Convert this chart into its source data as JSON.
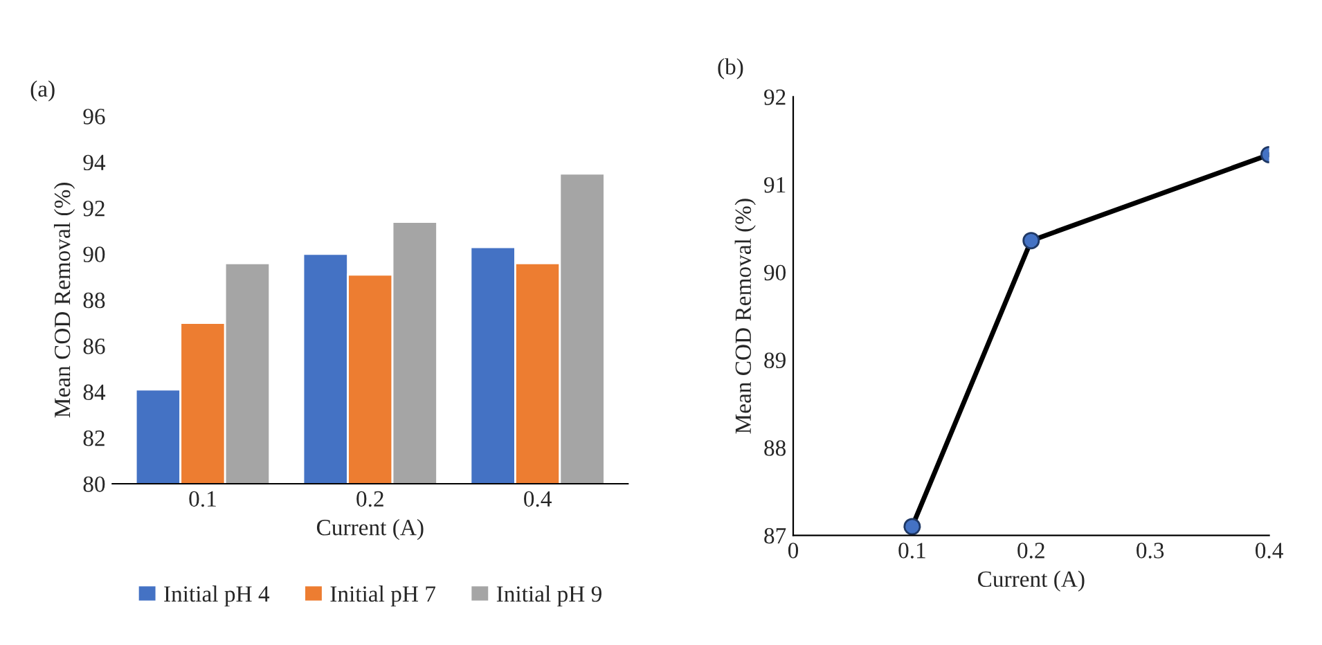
{
  "chart_data": [
    {
      "type": "bar",
      "title": "(a)",
      "xlabel": "Current (A)",
      "ylabel": "Mean COD Removal (%)",
      "categories": [
        "0.1",
        "0.2",
        "0.4"
      ],
      "series": [
        {
          "name": "Initial pH 4",
          "color": "#4472c4",
          "values": [
            84.1,
            90.0,
            90.3
          ]
        },
        {
          "name": "Initial pH 7",
          "color": "#ed7d31",
          "values": [
            87.0,
            89.1,
            89.6
          ]
        },
        {
          "name": "Initial pH 9",
          "color": "#a5a5a5",
          "values": [
            89.6,
            91.4,
            93.5
          ]
        }
      ],
      "ylim": [
        80,
        96
      ],
      "yticks": [
        80,
        82,
        84,
        86,
        88,
        90,
        92,
        94,
        96
      ],
      "grid": false,
      "legend": "bottom"
    },
    {
      "type": "line",
      "title": "(b)",
      "xlabel": "Current (A)",
      "ylabel": "Mean COD Removal (%)",
      "x": [
        0.1,
        0.2,
        0.4
      ],
      "series": [
        {
          "color": "#000000",
          "values": [
            87.1,
            90.36,
            91.34
          ]
        }
      ],
      "marker": "circle",
      "line_style": "solid",
      "xlim": [
        0,
        0.4
      ],
      "xticks": [
        0,
        0.1,
        0.2,
        0.3,
        0.4
      ],
      "ylim": [
        87,
        92
      ],
      "yticks": [
        87,
        88,
        89,
        90,
        91,
        92
      ],
      "grid": false
    }
  ]
}
